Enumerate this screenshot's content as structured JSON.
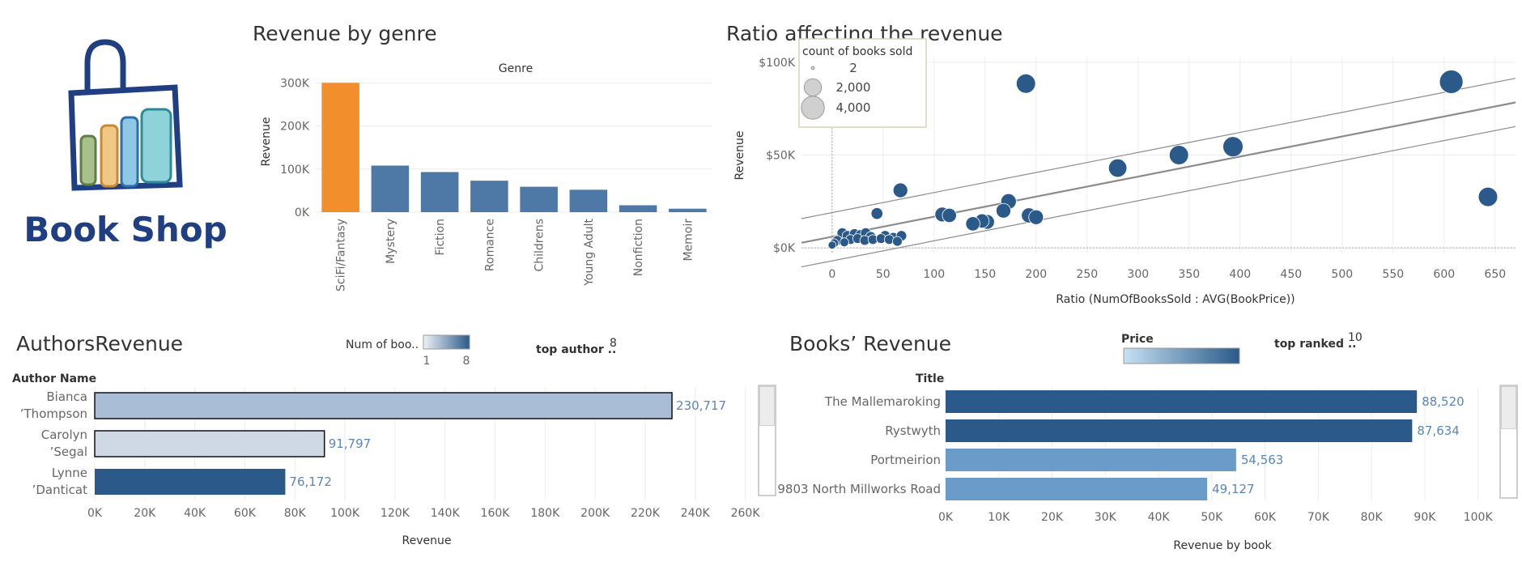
{
  "logo": {
    "text": "Book Shop"
  },
  "colors": {
    "accent": "#f28e2b",
    "primary": "#4e79a7",
    "dark": "#2b5a8a",
    "light": "#a9bdd6",
    "lighter": "#cfd9e6",
    "mid": "#6b9bc8",
    "label": "#5b85b8"
  },
  "chart_data": [
    {
      "id": "genre",
      "type": "bar",
      "title": "Revenue by genre",
      "header": "Genre",
      "ylabel": "Revenue",
      "categories": [
        "SciFi/Fantasy",
        "Mystery",
        "Fiction",
        "Romance",
        "Childrens",
        "Young Adult",
        "Nonfiction",
        "Memoir"
      ],
      "values": [
        300000,
        108000,
        93000,
        73000,
        59000,
        52000,
        16000,
        8000
      ],
      "highlight": 0,
      "ylim": [
        0,
        310000
      ],
      "yticks": [
        0,
        100000,
        200000,
        300000
      ],
      "ytick_labels": [
        "0K",
        "100K",
        "200K",
        "300K"
      ]
    },
    {
      "id": "ratio",
      "type": "scatter",
      "title": "Ratio affecting the revenue",
      "xlabel": "Ratio (NumOfBooksSold : AVG(BookPrice))",
      "ylabel": "Revenue",
      "xlim": [
        -30,
        670
      ],
      "ylim": [
        -3000,
        103000
      ],
      "xticks": [
        0,
        50,
        100,
        150,
        200,
        250,
        300,
        350,
        400,
        450,
        500,
        550,
        600,
        650
      ],
      "yticks": [
        0,
        50000,
        100000
      ],
      "ytick_labels": [
        "$0K",
        "$50K",
        "$100K"
      ],
      "legend": {
        "title": "count of books sold",
        "entries": [
          "2",
          "2,000",
          "4,000"
        ],
        "sizes": [
          2,
          2000,
          4000
        ],
        "placement": "top-left"
      },
      "trend": {
        "slope": 108,
        "intercept": 6000,
        "band": 13000
      },
      "points": [
        {
          "x": 190,
          "y": 88500,
          "s": 2600
        },
        {
          "x": 607,
          "y": 89500,
          "s": 4200
        },
        {
          "x": 643,
          "y": 27500,
          "s": 2600
        },
        {
          "x": 393,
          "y": 54500,
          "s": 2900
        },
        {
          "x": 340,
          "y": 50000,
          "s": 2600
        },
        {
          "x": 280,
          "y": 43000,
          "s": 2300
        },
        {
          "x": 67,
          "y": 31000,
          "s": 1300
        },
        {
          "x": 173,
          "y": 25000,
          "s": 1500
        },
        {
          "x": 168,
          "y": 20000,
          "s": 1300
        },
        {
          "x": 193,
          "y": 17500,
          "s": 1400
        },
        {
          "x": 200,
          "y": 16500,
          "s": 1300
        },
        {
          "x": 108,
          "y": 18000,
          "s": 1300
        },
        {
          "x": 115,
          "y": 17500,
          "s": 1200
        },
        {
          "x": 152,
          "y": 14000,
          "s": 1300
        },
        {
          "x": 147,
          "y": 14500,
          "s": 1200
        },
        {
          "x": 138,
          "y": 13000,
          "s": 1200
        },
        {
          "x": 44,
          "y": 18500,
          "s": 700
        },
        {
          "x": 10,
          "y": 8000,
          "s": 500
        },
        {
          "x": 15,
          "y": 6500,
          "s": 500
        },
        {
          "x": 22,
          "y": 7500,
          "s": 500
        },
        {
          "x": 28,
          "y": 7000,
          "s": 500
        },
        {
          "x": 33,
          "y": 8000,
          "s": 500
        },
        {
          "x": 38,
          "y": 6000,
          "s": 500
        },
        {
          "x": 52,
          "y": 6500,
          "s": 500
        },
        {
          "x": 60,
          "y": 5500,
          "s": 500
        },
        {
          "x": 68,
          "y": 6500,
          "s": 500
        },
        {
          "x": 5,
          "y": 4000,
          "s": 400
        },
        {
          "x": 18,
          "y": 4500,
          "s": 400
        },
        {
          "x": 25,
          "y": 5000,
          "s": 400
        },
        {
          "x": 32,
          "y": 4000,
          "s": 400
        },
        {
          "x": 40,
          "y": 4500,
          "s": 400
        },
        {
          "x": 48,
          "y": 5000,
          "s": 400
        },
        {
          "x": 56,
          "y": 4500,
          "s": 400
        },
        {
          "x": 64,
          "y": 3500,
          "s": 400
        },
        {
          "x": 2,
          "y": 2500,
          "s": 300
        },
        {
          "x": 12,
          "y": 3000,
          "s": 300
        },
        {
          "x": 0,
          "y": 1500,
          "s": 200
        }
      ]
    },
    {
      "id": "authors",
      "type": "bar",
      "orientation": "horizontal",
      "title": "AuthorsRevenue",
      "row_header": "Author Name",
      "xlabel": "Revenue",
      "legend_label": "Num of boo..",
      "legend_min": "1",
      "legend_max": "8",
      "param_label": "top author ..",
      "param_value": "8",
      "categories": [
        [
          "Bianca",
          "’Thompson"
        ],
        [
          "Carolyn",
          "’Segal"
        ],
        [
          "Lynne",
          "’Danticat"
        ]
      ],
      "values": [
        230717,
        91797,
        76172
      ],
      "value_labels": [
        "230,717",
        "91,797",
        "76,172"
      ],
      "counts": [
        3,
        1,
        8
      ],
      "xlim": [
        0,
        265000
      ],
      "xticks": [
        0,
        20000,
        40000,
        60000,
        80000,
        100000,
        120000,
        140000,
        160000,
        180000,
        200000,
        220000,
        240000,
        260000
      ],
      "xtick_labels": [
        "0K",
        "20K",
        "40K",
        "60K",
        "80K",
        "100K",
        "120K",
        "140K",
        "160K",
        "180K",
        "200K",
        "220K",
        "240K",
        "260K"
      ]
    },
    {
      "id": "books",
      "type": "bar",
      "orientation": "horizontal",
      "title": "Books’ Revenue",
      "row_header": "Title",
      "xlabel": "Revenue by book",
      "legend_label": "Price",
      "param_label": "top ranked ..",
      "param_value": "10",
      "categories": [
        "The Mallemaroking",
        "Rystwyth",
        "Portmeirion",
        "9803 North Millworks Road"
      ],
      "values": [
        88520,
        87634,
        54563,
        49127
      ],
      "value_labels": [
        "88,520",
        "87,634",
        "54,563",
        "49,127"
      ],
      "price_level": [
        "dark",
        "dark",
        "mid",
        "mid"
      ],
      "xlim": [
        0,
        104000
      ],
      "xticks": [
        0,
        10000,
        20000,
        30000,
        40000,
        50000,
        60000,
        70000,
        80000,
        90000,
        100000
      ],
      "xtick_labels": [
        "0K",
        "10K",
        "20K",
        "30K",
        "40K",
        "50K",
        "60K",
        "70K",
        "80K",
        "90K",
        "100K"
      ]
    }
  ]
}
